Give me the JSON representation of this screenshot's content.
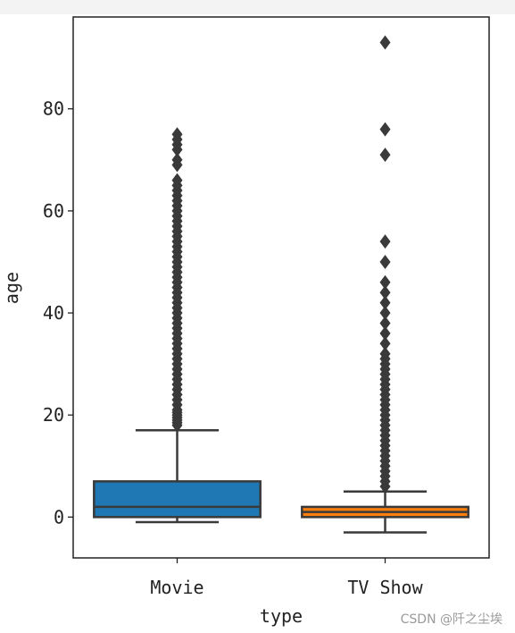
{
  "chart_data": {
    "type": "box",
    "xlabel": "type",
    "ylabel": "age",
    "ylim": [
      -8,
      98
    ],
    "yticks": [
      0,
      20,
      40,
      60,
      80
    ],
    "categories": [
      "Movie",
      "TV Show"
    ],
    "colors": [
      "#1f77b4",
      "#ff7f0e"
    ],
    "line_color": "#3a3a3a",
    "boxes": [
      {
        "name": "Movie",
        "whisker_low": -1,
        "q1": 0,
        "median": 2,
        "q3": 7,
        "whisker_high": 17,
        "outliers": [
          18,
          18.5,
          19,
          19.5,
          20,
          20.5,
          21,
          22,
          23,
          24,
          25,
          26,
          27,
          28,
          29,
          30,
          31,
          32,
          33,
          34,
          35,
          36,
          37,
          38,
          39,
          40,
          41,
          42,
          43,
          44,
          45,
          46,
          47,
          48,
          49,
          50,
          51,
          52,
          53,
          54,
          55,
          56,
          57,
          58,
          59,
          60,
          61,
          62,
          63,
          64,
          65,
          66,
          69,
          70,
          72,
          73,
          74,
          75
        ]
      },
      {
        "name": "TV Show",
        "whisker_low": -3,
        "q1": 0,
        "median": 1,
        "q3": 2,
        "whisker_high": 5,
        "outliers": [
          6,
          7,
          8,
          9,
          10,
          11,
          12,
          13,
          14,
          15,
          16,
          17,
          18,
          19,
          20,
          21,
          22,
          23,
          24,
          25,
          26,
          27,
          28,
          29,
          30,
          31,
          32,
          34,
          36,
          38,
          40,
          42,
          44,
          46,
          50,
          54,
          71,
          76,
          93
        ]
      }
    ]
  },
  "watermark": "CSDN @阡之尘埃"
}
